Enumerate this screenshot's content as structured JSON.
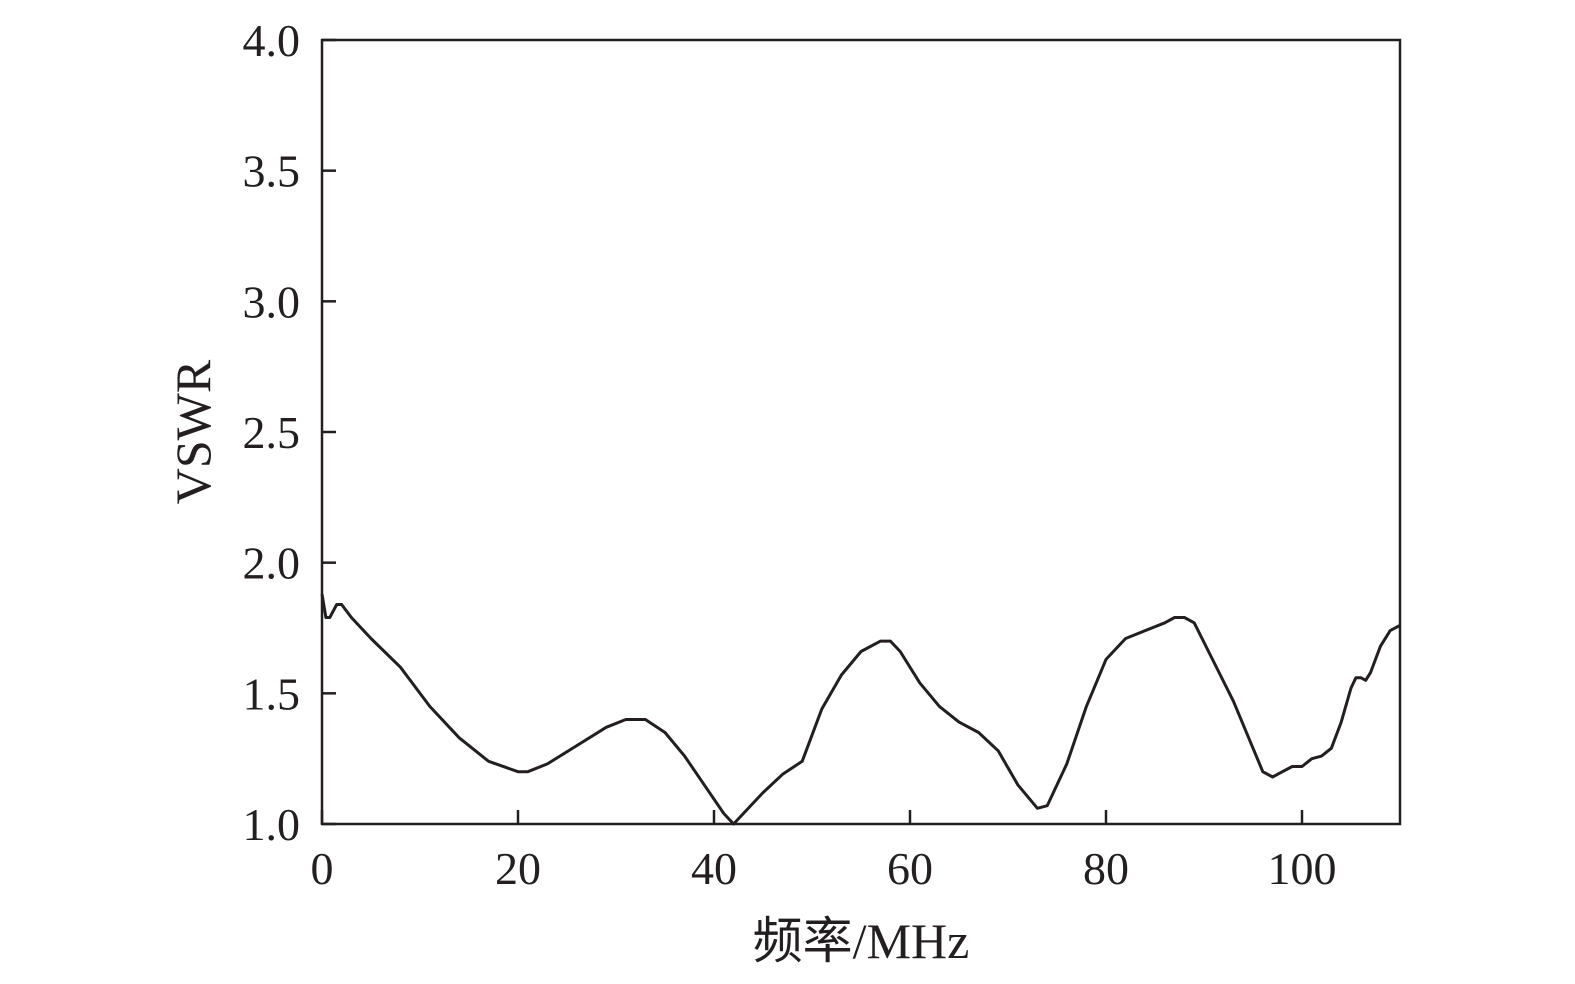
{
  "chart_data": {
    "type": "line",
    "xlabel": "频率/MHz",
    "ylabel": "VSWR",
    "xlim": [
      0,
      110
    ],
    "ylim": [
      1.0,
      4.0
    ],
    "x_ticks": [
      0,
      20,
      40,
      60,
      80,
      100
    ],
    "x_tick_labels": [
      "0",
      "20",
      "40",
      "60",
      "80",
      "100"
    ],
    "y_ticks": [
      1.0,
      1.5,
      2.0,
      2.5,
      3.0,
      3.5,
      4.0
    ],
    "y_tick_labels": [
      "1.0",
      "1.5",
      "2.0",
      "2.5",
      "3.0",
      "3.5",
      "4.0"
    ],
    "grid": false,
    "line_color": "#231f20",
    "series": [
      {
        "x": [
          0,
          0.4,
          0.8,
          1.5,
          2.0,
          3,
          5,
          8,
          11,
          14,
          17,
          20,
          21,
          23,
          26,
          29,
          31,
          33,
          35,
          37,
          39,
          41,
          42,
          43,
          45,
          47,
          49,
          51,
          53,
          55,
          57,
          58,
          59,
          61,
          63,
          65,
          67,
          69,
          71,
          73,
          74,
          76,
          78,
          80,
          82,
          84,
          86,
          87,
          88,
          89,
          91,
          93,
          95,
          96,
          97,
          98,
          99,
          100,
          101,
          102,
          103,
          104,
          105,
          105.5,
          106,
          106.5,
          107,
          108,
          109,
          110
        ],
        "y": [
          1.88,
          1.79,
          1.79,
          1.84,
          1.84,
          1.79,
          1.71,
          1.6,
          1.45,
          1.33,
          1.24,
          1.2,
          1.2,
          1.23,
          1.3,
          1.37,
          1.4,
          1.4,
          1.35,
          1.26,
          1.15,
          1.04,
          1.0,
          1.04,
          1.12,
          1.19,
          1.24,
          1.44,
          1.57,
          1.66,
          1.7,
          1.7,
          1.66,
          1.54,
          1.45,
          1.39,
          1.35,
          1.28,
          1.15,
          1.06,
          1.07,
          1.23,
          1.45,
          1.63,
          1.71,
          1.74,
          1.77,
          1.79,
          1.79,
          1.77,
          1.62,
          1.47,
          1.29,
          1.2,
          1.18,
          1.2,
          1.22,
          1.22,
          1.25,
          1.26,
          1.29,
          1.39,
          1.52,
          1.56,
          1.56,
          1.55,
          1.58,
          1.68,
          1.74,
          1.76
        ]
      }
    ]
  }
}
